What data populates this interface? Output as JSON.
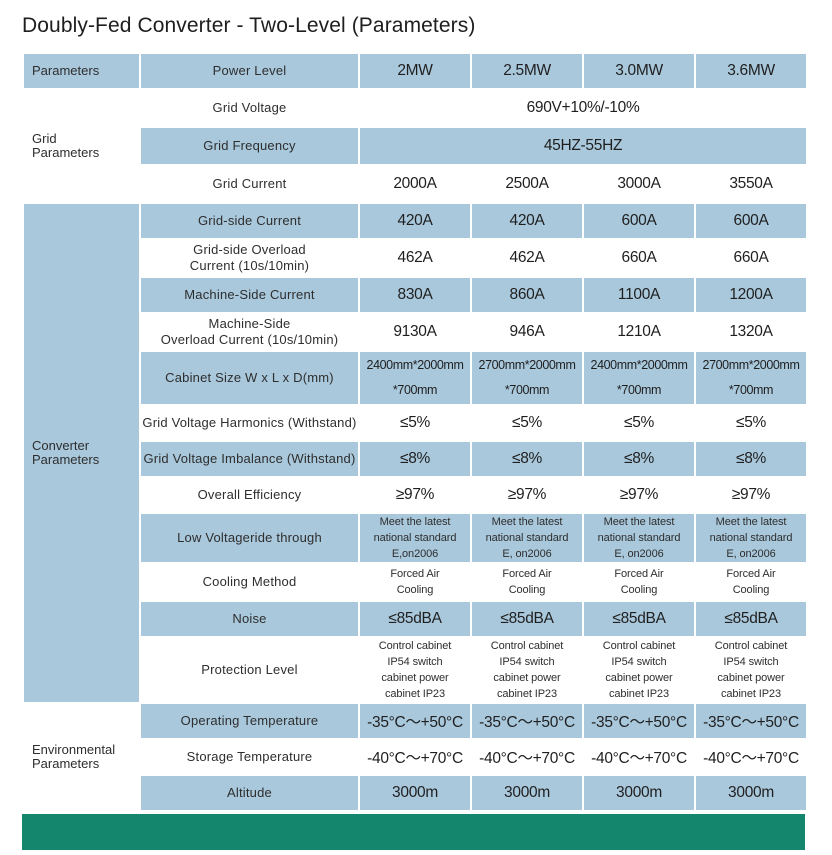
{
  "title": "Doubly-Fed Converter - Two-Level (Parameters)",
  "header": {
    "group": "Parameters",
    "param": "Power Level",
    "columns": [
      "2MW",
      "2.5MW",
      "3.0MW",
      "3.6MW"
    ]
  },
  "groups": {
    "grid": "Grid\nParameters",
    "converter": "Converter\nParameters",
    "environmental": "Environmental\nParameters"
  },
  "grid_rows": [
    {
      "param": "Grid Voltage",
      "merged": "690V+10%/-10%"
    },
    {
      "param": "Grid Frequency",
      "merged": "45HZ-55HZ"
    },
    {
      "param": "Grid Current",
      "values": [
        "2000A",
        "2500A",
        "3000A",
        "3550A"
      ]
    }
  ],
  "converter_rows": [
    {
      "param": "Grid-side Current",
      "values": [
        "420A",
        "420A",
        "600A",
        "600A"
      ]
    },
    {
      "param": "Grid-side Overload\nCurrent (10s/10min)",
      "values": [
        "462A",
        "462A",
        "660A",
        "660A"
      ]
    },
    {
      "param": "Machine-Side Current",
      "values": [
        "830A",
        "860A",
        "1100A",
        "1200A"
      ]
    },
    {
      "param": "Machine-Side\nOverload Current (10s/10min)",
      "values": [
        "9130A",
        "946A",
        "1210A",
        "1320A"
      ]
    },
    {
      "param": "Cabinet Size W x L x D(mm)",
      "values": [
        "2400mm*2000mm\n*700mm",
        "2700mm*2000mm\n*700mm",
        "2400mm*2000mm\n*700mm",
        "2700mm*2000mm\n*700mm"
      ]
    },
    {
      "param": "Grid Voltage Harmonics (Withstand)",
      "values": [
        "≤5%",
        "≤5%",
        "≤5%",
        "≤5%"
      ]
    },
    {
      "param": "Grid Voltage Imbalance (Withstand)",
      "values": [
        "≤8%",
        "≤8%",
        "≤8%",
        "≤8%"
      ]
    },
    {
      "param": "Overall Efficiency",
      "values": [
        "≥97%",
        "≥97%",
        "≥97%",
        "≥97%"
      ]
    },
    {
      "param": "Low Voltageride through",
      "values": [
        "Meet the latest\nnational standard\nE,on2006",
        "Meet the latest\nnational standard\nE, on2006",
        "Meet the latest\nnational standard\nE, on2006",
        "Meet the latest\nnational standard\nE, on2006"
      ]
    },
    {
      "param": "Cooling Method",
      "values": [
        "Forced Air\nCooling",
        "Forced Air\nCooling",
        "Forced Air\nCooling",
        "Forced Air\nCooling"
      ]
    },
    {
      "param": "Noise",
      "values": [
        "≤85dBA",
        "≤85dBA",
        "≤85dBA",
        "≤85dBA"
      ]
    },
    {
      "param": "Protection Level",
      "values": [
        "Control cabinet\nIP54 switch\ncabinet power\ncabinet IP23",
        "Control cabinet\nIP54 switch\ncabinet power\ncabinet IP23",
        "Control cabinet\nIP54 switch\ncabinet power\ncabinet IP23",
        "Control cabinet\nIP54 switch\ncabinet power\ncabinet IP23"
      ]
    }
  ],
  "environmental_rows": [
    {
      "param": "Operating Temperature",
      "values": [
        "-35°C～+50°C",
        "-35°C～+50°C",
        "-35°C～+50°C",
        "-35°C～+50°C"
      ]
    },
    {
      "param": "Storage Temperature",
      "values": [
        "-40°C～+70°C",
        "-40°C～+70°C",
        "-40°C～+70°C",
        "-40°C～+70°C"
      ]
    },
    {
      "param": "Altitude",
      "values": [
        "3000m",
        "3000m",
        "3000m",
        "3000m"
      ]
    }
  ],
  "colors": {
    "row_shade": "#a9c8dc",
    "footer_bar": "#15866e"
  }
}
